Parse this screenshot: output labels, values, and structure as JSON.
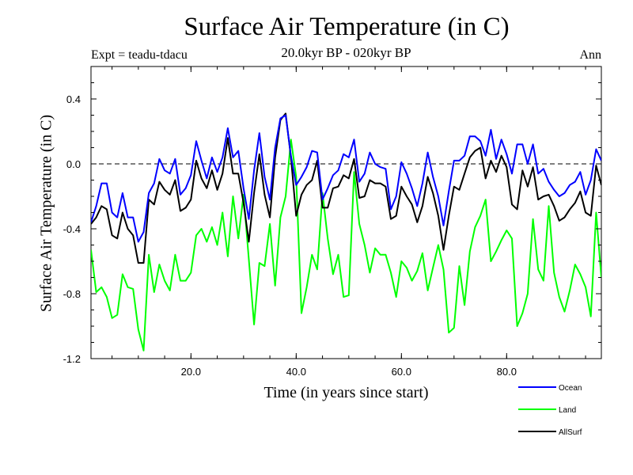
{
  "chart_data": {
    "type": "line",
    "title": "Surface Air Temperature (in C)",
    "subtitle": "20.0kyr BP - 020kyr BP",
    "experiment": "Expt = teadu-tdacu",
    "period": "Ann",
    "xlabel": "Time (in years since start)",
    "ylabel": "Surface Air Temperature (in C)",
    "xlim": [
      1,
      98
    ],
    "ylim": [
      -1.2,
      0.6
    ],
    "xticks": [
      20.0,
      40.0,
      60.0,
      80.0
    ],
    "xtick_labels": [
      "20.0",
      "40.0",
      "60.0",
      "80.0"
    ],
    "yticks": [
      0.4,
      0.0,
      -0.4,
      -0.8,
      -1.2
    ],
    "ytick_labels": [
      "0.4",
      "0.0",
      "-0.4",
      "-0.8",
      "-1.2"
    ],
    "reference_line": 0.0,
    "x": [
      1,
      2,
      3,
      4,
      5,
      6,
      7,
      8,
      9,
      10,
      11,
      12,
      13,
      14,
      15,
      16,
      17,
      18,
      19,
      20,
      21,
      22,
      23,
      24,
      25,
      26,
      27,
      28,
      29,
      30,
      31,
      32,
      33,
      34,
      35,
      36,
      37,
      38,
      39,
      40,
      41,
      42,
      43,
      44,
      45,
      46,
      47,
      48,
      49,
      50,
      51,
      52,
      53,
      54,
      55,
      56,
      57,
      58,
      59,
      60,
      61,
      62,
      63,
      64,
      65,
      66,
      67,
      68,
      69,
      70,
      71,
      72,
      73,
      74,
      75,
      76,
      77,
      78,
      79,
      80,
      81,
      82,
      83,
      84,
      85,
      86,
      87,
      88,
      89,
      90,
      91,
      92,
      93,
      94,
      95,
      96,
      97,
      98
    ],
    "series": [
      {
        "name": "Ocean",
        "color": "#0000ff",
        "values": [
          -0.36,
          -0.26,
          -0.12,
          -0.12,
          -0.3,
          -0.33,
          -0.18,
          -0.33,
          -0.33,
          -0.48,
          -0.42,
          -0.18,
          -0.12,
          0.03,
          -0.04,
          -0.06,
          0.03,
          -0.19,
          -0.15,
          -0.07,
          0.14,
          0.02,
          -0.09,
          0.04,
          -0.05,
          0.04,
          0.22,
          0.04,
          0.08,
          -0.15,
          -0.34,
          -0.04,
          0.19,
          -0.08,
          -0.22,
          0.1,
          0.28,
          0.3,
          0.05,
          -0.13,
          -0.08,
          -0.02,
          0.08,
          0.07,
          -0.22,
          -0.15,
          -0.07,
          -0.04,
          0.06,
          0.04,
          0.15,
          -0.11,
          -0.06,
          0.07,
          0.0,
          -0.02,
          -0.03,
          -0.28,
          -0.2,
          0.01,
          -0.06,
          -0.15,
          -0.26,
          -0.12,
          0.07,
          -0.08,
          -0.2,
          -0.38,
          -0.17,
          0.02,
          0.02,
          0.05,
          0.17,
          0.17,
          0.14,
          0.05,
          0.21,
          0.03,
          0.15,
          0.06,
          -0.06,
          0.12,
          0.12,
          0.0,
          0.12,
          -0.06,
          -0.03,
          -0.11,
          -0.16,
          -0.2,
          -0.18,
          -0.13,
          -0.11,
          -0.05,
          -0.19,
          -0.1,
          0.09,
          0.02
        ]
      },
      {
        "name": "Land",
        "color": "#00ff00",
        "values": [
          -0.53,
          -0.79,
          -0.76,
          -0.82,
          -0.95,
          -0.93,
          -0.68,
          -0.76,
          -0.77,
          -1.02,
          -1.15,
          -0.56,
          -0.79,
          -0.62,
          -0.72,
          -0.78,
          -0.56,
          -0.72,
          -0.72,
          -0.67,
          -0.44,
          -0.4,
          -0.48,
          -0.39,
          -0.5,
          -0.3,
          -0.57,
          -0.2,
          -0.46,
          -0.19,
          -0.59,
          -0.99,
          -0.61,
          -0.63,
          -0.37,
          -0.75,
          -0.33,
          -0.2,
          0.15,
          -0.08,
          -0.92,
          -0.76,
          -0.56,
          -0.65,
          -0.18,
          -0.46,
          -0.68,
          -0.56,
          -0.82,
          -0.81,
          -0.05,
          -0.37,
          -0.5,
          -0.67,
          -0.52,
          -0.56,
          -0.56,
          -0.67,
          -0.82,
          -0.6,
          -0.64,
          -0.72,
          -0.66,
          -0.55,
          -0.78,
          -0.64,
          -0.5,
          -0.65,
          -1.04,
          -1.01,
          -0.63,
          -0.87,
          -0.54,
          -0.39,
          -0.32,
          -0.22,
          -0.6,
          -0.54,
          -0.47,
          -0.41,
          -0.46,
          -1.0,
          -0.92,
          -0.8,
          -0.34,
          -0.65,
          -0.72,
          -0.26,
          -0.67,
          -0.82,
          -0.91,
          -0.78,
          -0.62,
          -0.68,
          -0.76,
          -0.94,
          -0.3,
          -0.7
        ]
      },
      {
        "name": "AllSurf",
        "color": "#000000",
        "values": [
          -0.37,
          -0.33,
          -0.26,
          -0.28,
          -0.44,
          -0.46,
          -0.3,
          -0.4,
          -0.44,
          -0.61,
          -0.61,
          -0.22,
          -0.25,
          -0.11,
          -0.16,
          -0.19,
          -0.1,
          -0.29,
          -0.27,
          -0.22,
          0.02,
          -0.09,
          -0.15,
          -0.04,
          -0.16,
          -0.06,
          0.16,
          -0.06,
          -0.06,
          -0.24,
          -0.48,
          -0.18,
          0.06,
          -0.19,
          -0.33,
          0.04,
          0.27,
          0.31,
          0.04,
          -0.32,
          -0.19,
          -0.13,
          -0.1,
          0.02,
          -0.27,
          -0.27,
          -0.15,
          -0.14,
          -0.07,
          -0.09,
          0.03,
          -0.21,
          -0.2,
          -0.1,
          -0.12,
          -0.12,
          -0.14,
          -0.34,
          -0.32,
          -0.14,
          -0.2,
          -0.25,
          -0.36,
          -0.26,
          -0.08,
          -0.18,
          -0.32,
          -0.53,
          -0.32,
          -0.14,
          -0.16,
          -0.06,
          0.04,
          0.08,
          0.1,
          -0.09,
          0.02,
          -0.05,
          0.05,
          -0.02,
          -0.25,
          -0.28,
          -0.04,
          -0.14,
          -0.02,
          -0.22,
          -0.2,
          -0.19,
          -0.26,
          -0.35,
          -0.33,
          -0.28,
          -0.24,
          -0.17,
          -0.3,
          -0.32,
          -0.01,
          -0.13
        ]
      }
    ]
  }
}
